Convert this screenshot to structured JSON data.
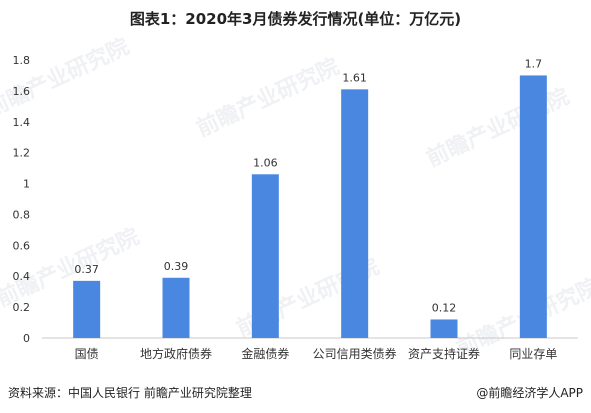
{
  "title": "图表1：2020年3月债券发行情况(单位：万亿元)",
  "footer": {
    "source": "资料来源：中国人民银行 前瞻产业研究院整理",
    "brand": "@前瞻经济学人APP"
  },
  "watermark": "前瞻产业研究院",
  "colors": {
    "bar": "#4a87e0",
    "axis": "#c8c8c8",
    "text": "#333333"
  },
  "chart_data": {
    "type": "bar",
    "title": "图表1：2020年3月债券发行情况(单位：万亿元)",
    "categories": [
      "国债",
      "地方政府债券",
      "金融债券",
      "公司信用类债券",
      "资产支持证券",
      "同业存单"
    ],
    "values": [
      0.37,
      0.39,
      1.06,
      1.61,
      0.12,
      1.7
    ],
    "data_labels": [
      "0.37",
      "0.39",
      "1.06",
      "1.61",
      "0.12",
      "1.7"
    ],
    "y_ticks": [
      "0",
      "0.2",
      "0.4",
      "0.6",
      "0.8",
      "1",
      "1.2",
      "1.4",
      "1.6",
      "1.8"
    ],
    "ylim": [
      0,
      1.8
    ],
    "grid": false,
    "legend": "none"
  }
}
